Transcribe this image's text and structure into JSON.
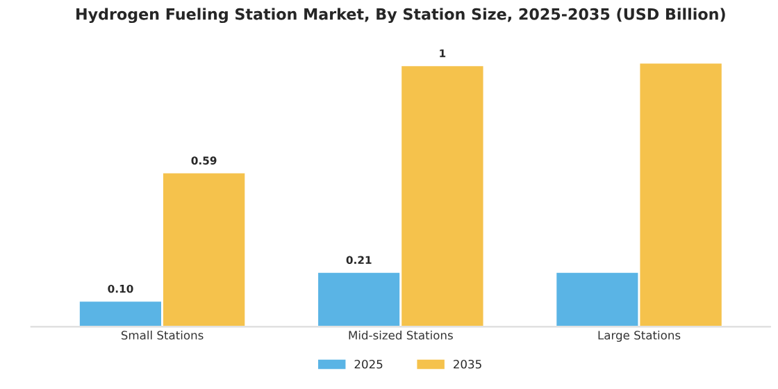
{
  "chart_data": {
    "type": "bar",
    "title": "Hydrogen Fueling Station Market, By Station Size, 2025-2035 (USD Billion)",
    "categories": [
      "Small Stations",
      "Mid-sized Stations",
      "Large Stations"
    ],
    "series": [
      {
        "name": "2025",
        "color": "#5ab4e5",
        "values": [
          0.1,
          0.21,
          0.21
        ],
        "value_labels": [
          "0.10",
          "0.21",
          null
        ]
      },
      {
        "name": "2035",
        "color": "#f5c24c",
        "values": [
          0.59,
          1,
          1.01
        ],
        "value_labels": [
          "0.59",
          "1",
          null
        ]
      }
    ],
    "legend": "bottom",
    "grid": false
  }
}
